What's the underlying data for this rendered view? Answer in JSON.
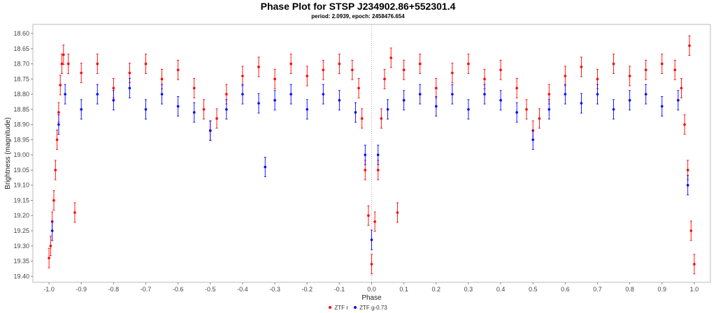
{
  "chart_data": {
    "type": "scatter",
    "title": "Phase Plot for STSP J234902.86+552301.4",
    "subtitle": "period: 2.0939, epoch: 2458476.654",
    "xlabel": "Phase",
    "ylabel": "Brightness (magnitude)",
    "xlim": [
      -1.05,
      1.05
    ],
    "ylim": [
      18.57,
      19.42
    ],
    "y_inverted": true,
    "x_ticks": [
      "-1.0",
      "-0.9",
      "-0.8",
      "-0.7",
      "-0.6",
      "-0.5",
      "-0.4",
      "-0.3",
      "-0.2",
      "-0.1",
      "0.0",
      "0.1",
      "0.2",
      "0.3",
      "0.4",
      "0.5",
      "0.6",
      "0.7",
      "0.8",
      "0.9",
      "1.0"
    ],
    "y_ticks": [
      "18.60",
      "18.65",
      "18.70",
      "18.75",
      "18.80",
      "18.85",
      "18.90",
      "18.95",
      "19.00",
      "19.05",
      "19.10",
      "19.15",
      "19.20",
      "19.25",
      "19.30",
      "19.35",
      "19.40"
    ],
    "grid": false,
    "legend_position": "bottom",
    "error_bars": true,
    "series": [
      {
        "name": "ZTF r",
        "color": "#ff0000",
        "points": [
          [
            -1.0,
            19.34
          ],
          [
            -0.995,
            19.3
          ],
          [
            -0.99,
            19.22
          ],
          [
            -0.985,
            19.15
          ],
          [
            -0.98,
            19.05
          ],
          [
            -0.975,
            18.95
          ],
          [
            -0.97,
            18.86
          ],
          [
            -0.965,
            18.77
          ],
          [
            -0.96,
            18.7
          ],
          [
            -0.955,
            18.67
          ],
          [
            -0.94,
            18.7
          ],
          [
            -0.92,
            19.19
          ],
          [
            -0.9,
            18.73
          ],
          [
            -0.85,
            18.7
          ],
          [
            -0.8,
            18.78
          ],
          [
            -0.75,
            18.73
          ],
          [
            -0.7,
            18.7
          ],
          [
            -0.65,
            18.75
          ],
          [
            -0.6,
            18.72
          ],
          [
            -0.55,
            18.78
          ],
          [
            -0.52,
            18.85
          ],
          [
            -0.5,
            18.92
          ],
          [
            -0.48,
            18.88
          ],
          [
            -0.45,
            18.8
          ],
          [
            -0.4,
            18.74
          ],
          [
            -0.35,
            18.71
          ],
          [
            -0.3,
            18.75
          ],
          [
            -0.25,
            18.7
          ],
          [
            -0.2,
            18.74
          ],
          [
            -0.15,
            18.72
          ],
          [
            -0.1,
            18.7
          ],
          [
            -0.06,
            18.72
          ],
          [
            -0.04,
            18.78
          ],
          [
            -0.03,
            18.88
          ],
          [
            -0.02,
            19.05
          ],
          [
            -0.01,
            19.2
          ],
          [
            0.0,
            19.36
          ],
          [
            0.01,
            19.22
          ],
          [
            0.02,
            19.05
          ],
          [
            0.03,
            18.88
          ],
          [
            0.04,
            18.75
          ],
          [
            0.06,
            18.68
          ],
          [
            0.08,
            19.19
          ],
          [
            0.1,
            18.72
          ],
          [
            0.15,
            18.7
          ],
          [
            0.2,
            18.78
          ],
          [
            0.25,
            18.73
          ],
          [
            0.3,
            18.7
          ],
          [
            0.35,
            18.75
          ],
          [
            0.4,
            18.72
          ],
          [
            0.45,
            18.78
          ],
          [
            0.48,
            18.85
          ],
          [
            0.5,
            18.92
          ],
          [
            0.52,
            18.88
          ],
          [
            0.55,
            18.8
          ],
          [
            0.6,
            18.74
          ],
          [
            0.65,
            18.71
          ],
          [
            0.7,
            18.75
          ],
          [
            0.75,
            18.7
          ],
          [
            0.8,
            18.74
          ],
          [
            0.85,
            18.72
          ],
          [
            0.9,
            18.7
          ],
          [
            0.94,
            18.72
          ],
          [
            0.96,
            18.78
          ],
          [
            0.97,
            18.9
          ],
          [
            0.98,
            19.05
          ],
          [
            0.99,
            19.25
          ],
          [
            1.0,
            19.36
          ],
          [
            0.985,
            18.64
          ]
        ]
      },
      {
        "name": "ZTF g-0.73",
        "color": "#0000ff",
        "points": [
          [
            -0.99,
            19.25
          ],
          [
            -0.97,
            18.9
          ],
          [
            -0.95,
            18.8
          ],
          [
            -0.9,
            18.85
          ],
          [
            -0.85,
            18.8
          ],
          [
            -0.8,
            18.82
          ],
          [
            -0.75,
            18.78
          ],
          [
            -0.7,
            18.85
          ],
          [
            -0.65,
            18.8
          ],
          [
            -0.6,
            18.84
          ],
          [
            -0.55,
            18.86
          ],
          [
            -0.5,
            18.92
          ],
          [
            -0.45,
            18.85
          ],
          [
            -0.4,
            18.8
          ],
          [
            -0.35,
            18.83
          ],
          [
            -0.33,
            19.04
          ],
          [
            -0.3,
            18.82
          ],
          [
            -0.25,
            18.8
          ],
          [
            -0.2,
            18.85
          ],
          [
            -0.15,
            18.8
          ],
          [
            -0.1,
            18.82
          ],
          [
            -0.05,
            18.86
          ],
          [
            -0.02,
            19.0
          ],
          [
            0.0,
            19.28
          ],
          [
            0.02,
            19.0
          ],
          [
            0.05,
            18.85
          ],
          [
            0.1,
            18.82
          ],
          [
            0.15,
            18.8
          ],
          [
            0.2,
            18.84
          ],
          [
            0.25,
            18.8
          ],
          [
            0.3,
            18.85
          ],
          [
            0.35,
            18.8
          ],
          [
            0.4,
            18.82
          ],
          [
            0.45,
            18.86
          ],
          [
            0.5,
            18.95
          ],
          [
            0.55,
            18.85
          ],
          [
            0.6,
            18.8
          ],
          [
            0.65,
            18.83
          ],
          [
            0.7,
            18.8
          ],
          [
            0.75,
            18.85
          ],
          [
            0.8,
            18.82
          ],
          [
            0.85,
            18.8
          ],
          [
            0.9,
            18.84
          ],
          [
            0.95,
            18.82
          ],
          [
            0.98,
            19.1
          ]
        ]
      }
    ]
  }
}
